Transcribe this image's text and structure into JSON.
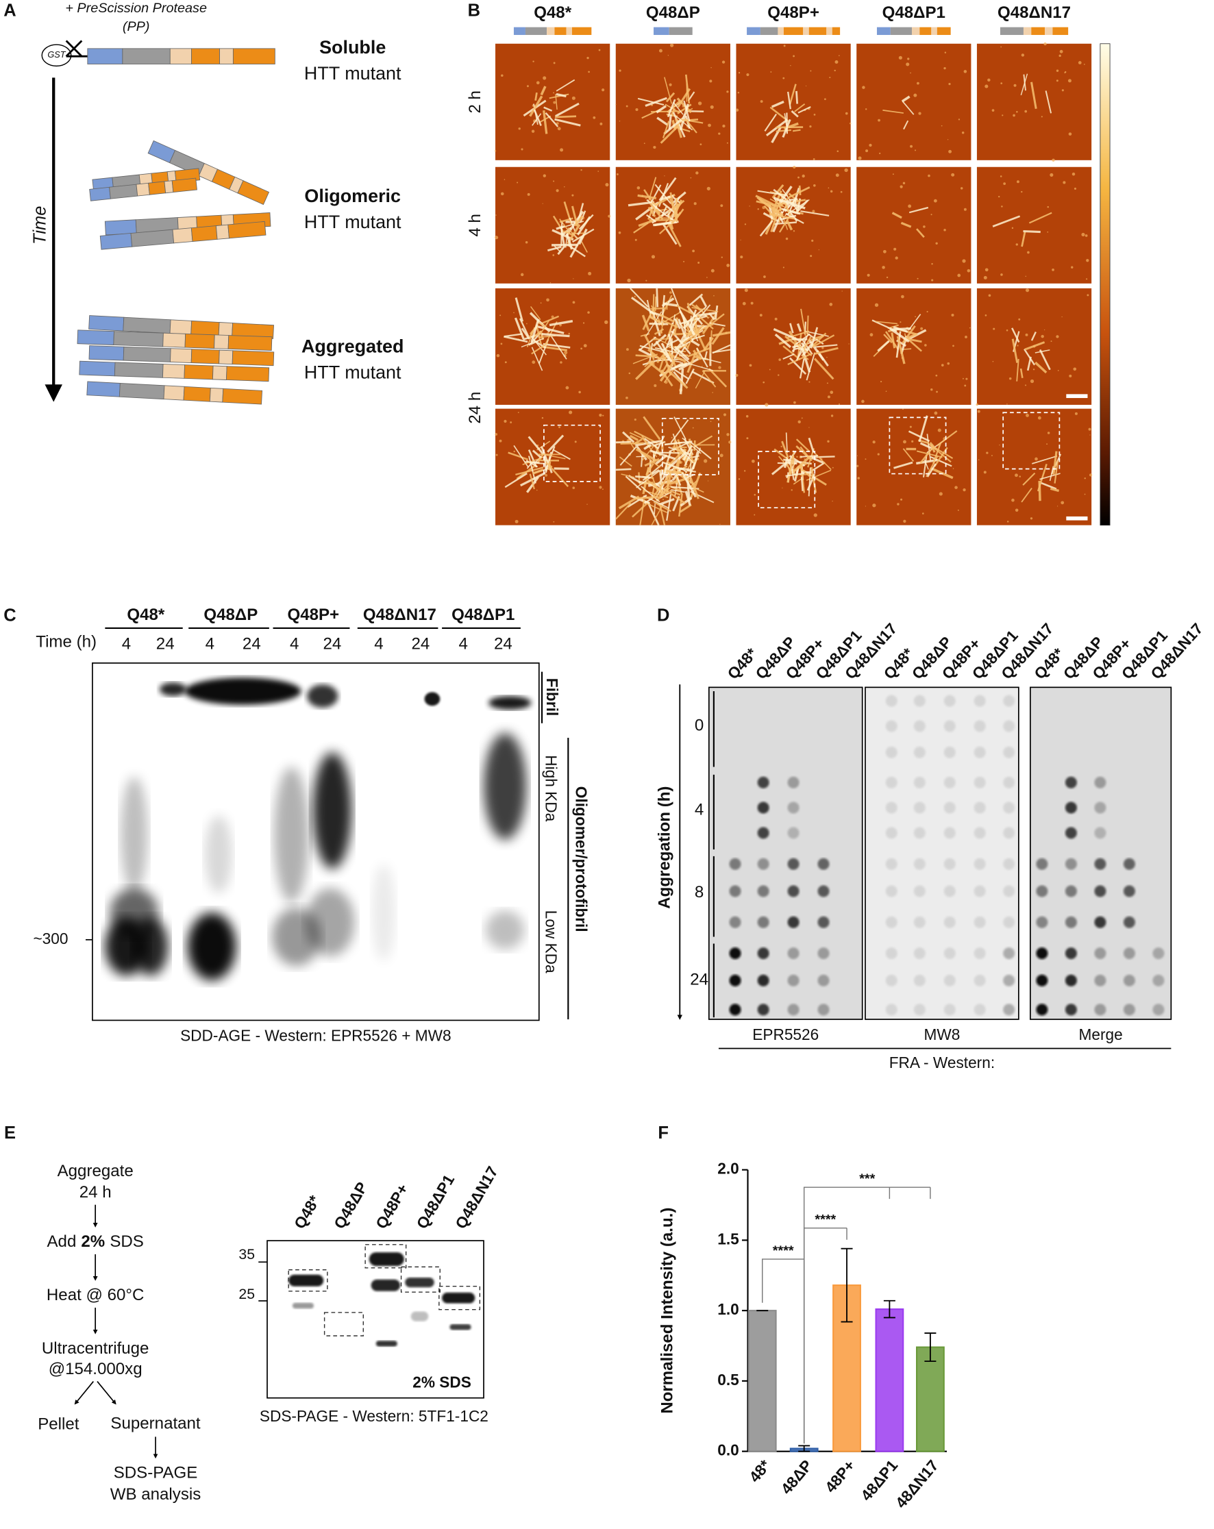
{
  "panel_a": {
    "label": "A",
    "protease": [
      "+ PreScission Protease",
      "(PP)"
    ],
    "gst": "GST",
    "time": "Time",
    "states": [
      {
        "name": "Soluble",
        "desc": "HTT mutant"
      },
      {
        "name": "Oligomeric",
        "desc": "HTT mutant"
      },
      {
        "name": "Aggregated",
        "desc": "HTT mutant"
      }
    ]
  },
  "panel_b": {
    "label": "B",
    "constructs": [
      "Q48*",
      "Q48ΔP",
      "Q48P+",
      "Q48ΔP1",
      "Q48ΔN17"
    ],
    "times": [
      "2 h",
      "4 h",
      "24 h"
    ]
  },
  "panel_c": {
    "label": "C",
    "lanes": [
      "Q48*",
      "Q48ΔP",
      "Q48P+",
      "Q48ΔN17",
      "Q48ΔP1"
    ],
    "time_label": "Time (h)",
    "lane_times": [
      "4",
      "24"
    ],
    "marker": "~300",
    "fibril": "Fibril",
    "oligomer": "Oligomer/protofibril",
    "high": "High KDa",
    "low": "Low KDa",
    "caption": "SDD-AGE - Western: EPR5526 + MW8"
  },
  "panel_d": {
    "label": "D",
    "columns": [
      "Q48*",
      "Q48ΔP",
      "Q48P+",
      "Q48ΔP1",
      "Q48ΔN17"
    ],
    "axis_label": "Aggregation (h)",
    "times": [
      "0",
      "4",
      "8",
      "24"
    ],
    "blots": [
      "EPR5526",
      "MW8",
      "Merge"
    ],
    "caption": "FRA - Western:"
  },
  "panel_e": {
    "label": "E",
    "steps": {
      "aggregate": "Aggregate",
      "aggregate_time": "24 h",
      "add": "Add",
      "add_amount": "2%",
      "add_agent": "SDS",
      "heat": "Heat @ 60°C",
      "spin": "Ultracentrifuge",
      "spin_speed": "@154.000xg",
      "pellet": "Pellet",
      "supernatant": "Supernatant",
      "analysis": "SDS-PAGE",
      "analysis_2": "WB analysis"
    },
    "lanes": [
      "Q48*",
      "Q48ΔP",
      "Q48P+",
      "Q48ΔP1",
      "Q48ΔN17"
    ],
    "markers": [
      "35",
      "25"
    ],
    "gel_note": "2% SDS",
    "caption": "SDS-PAGE - Western: 5TF1-1C2"
  },
  "panel_f_label": "F",
  "chart_data": {
    "type": "bar",
    "y_label": "Normalised Intensity (a.u.)",
    "categories": [
      "48*",
      "48ΔP",
      "48P+",
      "48ΔP1",
      "48ΔN17"
    ],
    "values": [
      1.0,
      0.02,
      1.18,
      1.01,
      0.74
    ],
    "errors": [
      0,
      0.02,
      0.26,
      0.06,
      0.1
    ],
    "colors": [
      "#8c8c8c",
      "#2f5fa8",
      "#f99a3c",
      "#9b3cf0",
      "#6a9a3a"
    ],
    "ylim": [
      0,
      2
    ],
    "yticks": [
      {
        "value": 0,
        "label": "0.0"
      },
      {
        "value": 0.5,
        "label": "0.5"
      },
      {
        "value": 1,
        "label": "1.0"
      },
      {
        "value": 1.5,
        "label": "1.5"
      },
      {
        "value": 2,
        "label": "2.0"
      }
    ],
    "comparisons": [
      {
        "label": "****",
        "groups": [
          "48*",
          "48ΔP"
        ]
      },
      {
        "label": "****",
        "groups": [
          "48ΔP",
          "48P+"
        ]
      },
      {
        "label": "***",
        "groups": [
          "48ΔP",
          "48ΔP1",
          "48ΔN17"
        ]
      }
    ]
  }
}
